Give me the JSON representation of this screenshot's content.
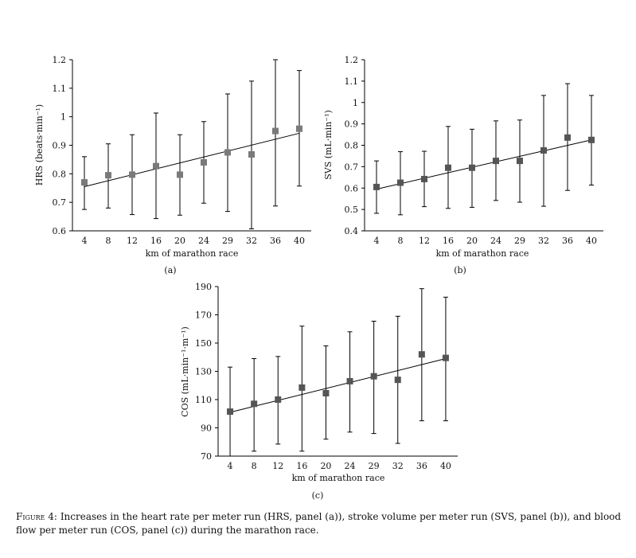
{
  "caption": {
    "label": "Figure 4:",
    "text": "Increases in the heart rate per meter run (HRS, panel (a)), stroke volume per meter run (SVS, panel (b)), and blood flow per meter run (COS, panel (c)) during the marathon race."
  },
  "chart_data": [
    {
      "type": "scatter",
      "panel": "(a)",
      "xlabel": "km of marathon race",
      "ylabel": "HRS (beats·min⁻¹)",
      "categories": [
        "4",
        "8",
        "12",
        "16",
        "20",
        "24",
        "29",
        "32",
        "36",
        "40"
      ],
      "values": [
        0.77,
        0.795,
        0.797,
        0.827,
        0.797,
        0.84,
        0.875,
        0.868,
        0.95,
        0.958
      ],
      "err_upper": [
        0.86,
        0.905,
        0.937,
        1.013,
        0.937,
        0.983,
        1.08,
        1.125,
        1.2,
        1.162
      ],
      "err_lower": [
        0.675,
        0.68,
        0.657,
        0.643,
        0.655,
        0.697,
        0.668,
        0.607,
        0.687,
        0.757
      ],
      "trend": [
        0.755,
        0.942
      ],
      "ylim": [
        0.6,
        1.2
      ],
      "yticks": [
        "0.6",
        "0.7",
        "0.8",
        "0.9",
        "1",
        "1.1",
        "1.2"
      ],
      "marker_color": "#7a7a7a"
    },
    {
      "type": "scatter",
      "panel": "(b)",
      "xlabel": "km of marathon race",
      "ylabel": "SVS (mL·min⁻¹)",
      "categories": [
        "4",
        "8",
        "12",
        "16",
        "20",
        "24",
        "29",
        "32",
        "36",
        "40"
      ],
      "values": [
        0.605,
        0.625,
        0.642,
        0.695,
        0.695,
        0.727,
        0.727,
        0.776,
        0.836,
        0.825
      ],
      "err_upper": [
        0.727,
        0.77,
        0.772,
        0.888,
        0.875,
        0.914,
        0.918,
        1.033,
        1.088,
        1.033
      ],
      "err_lower": [
        0.482,
        0.475,
        0.513,
        0.505,
        0.51,
        0.542,
        0.534,
        0.515,
        0.589,
        0.614
      ],
      "trend": [
        0.595,
        0.825
      ],
      "ylim": [
        0.4,
        1.2
      ],
      "yticks": [
        "0.4",
        "0.5",
        "0.6",
        "0.7",
        "0.8",
        "0.9",
        "1",
        "1.1",
        "1.2"
      ],
      "marker_color": "#555555"
    },
    {
      "type": "scatter",
      "panel": "(c)",
      "xlabel": "km of marathon race",
      "ylabel": "COS (mL·min⁻¹·m⁻¹)",
      "categories": [
        "4",
        "8",
        "12",
        "16",
        "20",
        "24",
        "29",
        "32",
        "36",
        "40"
      ],
      "values": [
        101.5,
        107,
        110,
        118.5,
        114.5,
        123,
        126.5,
        124,
        142,
        139.5
      ],
      "err_upper": [
        133,
        139,
        140.5,
        162,
        148,
        158,
        165.5,
        169,
        188.5,
        182.5
      ],
      "err_lower": [
        70,
        73.5,
        78.5,
        73.5,
        82,
        87,
        86,
        79,
        95,
        95
      ],
      "trend": [
        101,
        139
      ],
      "ylim": [
        70,
        190
      ],
      "yticks": [
        "70",
        "90",
        "110",
        "130",
        "150",
        "170",
        "190"
      ],
      "marker_color": "#555555"
    }
  ]
}
